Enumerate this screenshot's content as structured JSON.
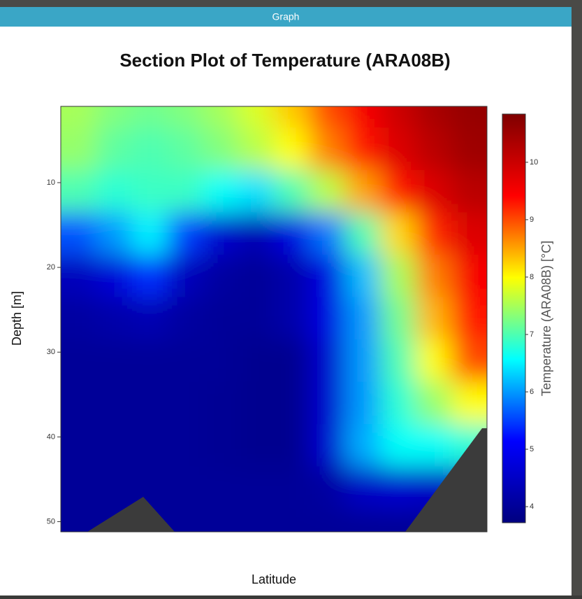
{
  "window": {
    "title": "Graph"
  },
  "chart_data": {
    "type": "heatmap",
    "title": "Section Plot of Temperature (ARA08B)",
    "xlabel": "Latitude",
    "ylabel": "Depth [m]",
    "colorbar_label": "Temperature (ARA08B) [°C]",
    "ylim": [
      1,
      51.2
    ],
    "yticks": [
      10,
      20,
      30,
      40,
      50
    ],
    "depths": [
      1,
      6,
      11,
      16,
      21,
      26,
      31,
      36,
      41,
      46,
      51
    ],
    "z": [
      [
        7.5,
        7.3,
        7.2,
        7.3,
        7.5,
        7.8,
        8.3,
        9.0,
        9.5,
        10.0,
        10.4,
        10.6
      ],
      [
        7.4,
        7.1,
        7.0,
        7.1,
        7.3,
        7.6,
        8.0,
        8.7,
        9.3,
        9.8,
        10.2,
        10.5
      ],
      [
        7.0,
        6.8,
        6.9,
        6.9,
        6.6,
        6.4,
        7.0,
        7.6,
        8.5,
        9.3,
        9.8,
        10.2
      ],
      [
        5.6,
        6.0,
        6.5,
        5.5,
        4.6,
        4.3,
        4.8,
        5.8,
        7.0,
        8.2,
        9.2,
        9.8
      ],
      [
        4.4,
        4.7,
        5.4,
        4.4,
        4.1,
        4.0,
        4.2,
        4.8,
        6.2,
        7.5,
        8.7,
        9.5
      ],
      [
        4.1,
        4.2,
        4.3,
        4.1,
        4.0,
        4.0,
        4.2,
        4.8,
        6.0,
        7.2,
        8.4,
        9.3
      ],
      [
        4.0,
        4.0,
        4.0,
        4.0,
        4.0,
        3.9,
        3.9,
        4.6,
        6.0,
        7.0,
        8.0,
        9.0
      ],
      [
        4.0,
        4.0,
        4.0,
        4.0,
        3.95,
        3.9,
        3.9,
        4.6,
        6.0,
        6.8,
        7.4,
        8.0
      ],
      [
        4.0,
        4.0,
        4.0,
        4.0,
        3.95,
        3.9,
        3.9,
        4.6,
        6.1,
        6.6,
        6.6,
        6.8
      ],
      [
        4.0,
        4.0,
        4.0,
        4.0,
        4.0,
        4.0,
        4.0,
        4.1,
        4.5,
        4.6,
        4.5,
        4.5
      ],
      [
        4.0,
        4.0,
        4.0,
        4.0,
        4.0,
        4.0,
        4.0,
        4.0,
        4.0,
        4.0,
        4.0,
        4.0
      ]
    ],
    "clim": [
      3.72,
      10.84
    ],
    "cticks": [
      4,
      5,
      6,
      7,
      8,
      9,
      10
    ],
    "colormap": [
      "#00007f",
      "#0000ff",
      "#00ffff",
      "#ffff00",
      "#ff0000",
      "#7f0000"
    ]
  }
}
